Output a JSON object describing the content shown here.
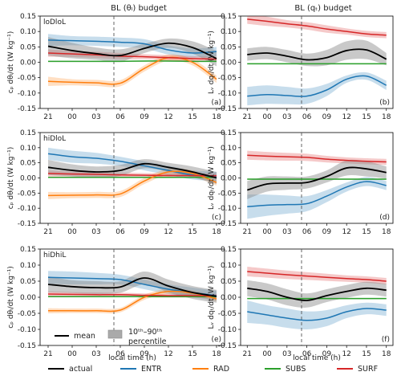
{
  "figure": {
    "column_titles": [
      "BL (θₗ) budget",
      "BL (qₜ) budget"
    ],
    "row_tags": [
      "loDloL",
      "hiDloL",
      "hiDhiL"
    ],
    "xlabel": "local time (h)",
    "ylabels_left": "cₚ dθₗ/dt (W kg⁻¹)",
    "ylabels_right": "Lᵥ dqₜ/dt (W kg⁻¹)",
    "panel_labels": [
      "(a)",
      "(b)",
      "(c)",
      "(d)",
      "(e)",
      "(f)"
    ],
    "legend_mean": "mean",
    "legend_pct": "10ᵗʰ–90ᵗʰ",
    "legend_pct2": "percentile",
    "bottom_legend": [
      "actual",
      "ENTR",
      "RAD",
      "SUBS",
      "SURF"
    ],
    "colors": {
      "actual": "#000000",
      "ENTR": "#1f77b4",
      "RAD": "#ff7f0e",
      "SUBS": "#2ca02c",
      "SURF": "#d62728"
    }
  },
  "chart_data": [
    {
      "panel": "(a)",
      "type": "line",
      "tag": "loDloL",
      "x": [
        21,
        24,
        27,
        30,
        33,
        36,
        39,
        42
      ],
      "xticks": [
        "21",
        "00",
        "03",
        "06",
        "09",
        "12",
        "15",
        "18"
      ],
      "ylim": [
        -0.15,
        0.15
      ],
      "vline_x": 29.2,
      "series": [
        {
          "name": "actual",
          "values": [
            0.052,
            0.038,
            0.028,
            0.022,
            0.045,
            0.062,
            0.048,
            0.012
          ],
          "band": [
            0.03,
            0.025,
            0.02,
            0.02,
            0.015,
            0.015,
            0.02,
            0.025
          ]
        },
        {
          "name": "ENTR",
          "values": [
            0.072,
            0.07,
            0.068,
            0.065,
            0.06,
            0.04,
            0.03,
            0.035
          ],
          "band": [
            0.02,
            0.015,
            0.015,
            0.015,
            0.015,
            0.015,
            0.015,
            0.015
          ]
        },
        {
          "name": "RAD",
          "values": [
            -0.062,
            -0.065,
            -0.067,
            -0.068,
            -0.02,
            0.015,
            0.0,
            -0.055
          ],
          "band": [
            0.015,
            0.01,
            0.01,
            0.01,
            0.01,
            0.01,
            0.01,
            0.012
          ]
        },
        {
          "name": "SUBS",
          "values": [
            0.003,
            0.003,
            0.003,
            0.003,
            0.004,
            0.004,
            0.003,
            0.003
          ],
          "band": [
            0.002,
            0.002,
            0.002,
            0.002,
            0.002,
            0.002,
            0.002,
            0.002
          ]
        },
        {
          "name": "SURF",
          "values": [
            0.03,
            0.027,
            0.024,
            0.02,
            0.018,
            0.015,
            0.012,
            0.01
          ],
          "band": [
            0.012,
            0.01,
            0.01,
            0.01,
            0.008,
            0.008,
            0.008,
            0.008
          ]
        }
      ]
    },
    {
      "panel": "(b)",
      "type": "line",
      "x": [
        21,
        24,
        27,
        30,
        33,
        36,
        39,
        42
      ],
      "xticks": [
        "21",
        "00",
        "03",
        "06",
        "09",
        "12",
        "15",
        "18"
      ],
      "ylim": [
        -0.15,
        0.15
      ],
      "vline_x": 29.2,
      "series": [
        {
          "name": "actual",
          "values": [
            0.025,
            0.03,
            0.02,
            0.008,
            0.015,
            0.038,
            0.04,
            0.01
          ],
          "band": [
            0.02,
            0.02,
            0.02,
            0.02,
            0.025,
            0.03,
            0.03,
            0.02
          ]
        },
        {
          "name": "ENTR",
          "values": [
            -0.11,
            -0.105,
            -0.108,
            -0.11,
            -0.09,
            -0.055,
            -0.045,
            -0.075
          ],
          "band": [
            0.03,
            0.03,
            0.028,
            0.025,
            0.02,
            0.012,
            0.012,
            0.015
          ]
        },
        {
          "name": "SUBS",
          "values": [
            -0.005,
            -0.005,
            -0.005,
            -0.005,
            -0.005,
            -0.005,
            -0.005,
            -0.005
          ],
          "band": [
            0.002,
            0.002,
            0.002,
            0.002,
            0.002,
            0.002,
            0.002,
            0.002
          ]
        },
        {
          "name": "SURF",
          "values": [
            0.14,
            0.133,
            0.125,
            0.118,
            0.108,
            0.1,
            0.092,
            0.088
          ],
          "band": [
            0.015,
            0.015,
            0.012,
            0.012,
            0.012,
            0.01,
            0.01,
            0.01
          ]
        }
      ]
    },
    {
      "panel": "(c)",
      "type": "line",
      "tag": "hiDloL",
      "x": [
        21,
        24,
        27,
        30,
        33,
        36,
        39,
        42
      ],
      "xticks": [
        "21",
        "00",
        "03",
        "06",
        "09",
        "12",
        "15",
        "18"
      ],
      "ylim": [
        -0.15,
        0.15
      ],
      "vline_x": 29.2,
      "series": [
        {
          "name": "actual",
          "values": [
            0.035,
            0.025,
            0.02,
            0.025,
            0.047,
            0.035,
            0.02,
            0.0
          ],
          "band": [
            0.025,
            0.02,
            0.018,
            0.018,
            0.015,
            0.015,
            0.018,
            0.02
          ]
        },
        {
          "name": "ENTR",
          "values": [
            0.08,
            0.07,
            0.065,
            0.055,
            0.04,
            0.025,
            0.01,
            0.005
          ],
          "band": [
            0.02,
            0.02,
            0.018,
            0.015,
            0.015,
            0.015,
            0.015,
            0.015
          ]
        },
        {
          "name": "RAD",
          "values": [
            -0.058,
            -0.057,
            -0.056,
            -0.053,
            -0.01,
            0.02,
            0.015,
            -0.015
          ],
          "band": [
            0.012,
            0.01,
            0.01,
            0.01,
            0.01,
            0.01,
            0.01,
            0.01
          ]
        },
        {
          "name": "SUBS",
          "values": [
            0.002,
            0.002,
            0.002,
            0.002,
            0.002,
            0.002,
            0.002,
            0.002
          ],
          "band": [
            0.002,
            0.002,
            0.002,
            0.002,
            0.002,
            0.002,
            0.002,
            0.002
          ]
        },
        {
          "name": "SURF",
          "values": [
            0.015,
            0.013,
            0.012,
            0.01,
            0.009,
            0.008,
            0.008,
            0.007
          ],
          "band": [
            0.01,
            0.008,
            0.008,
            0.008,
            0.007,
            0.007,
            0.007,
            0.007
          ]
        }
      ]
    },
    {
      "panel": "(d)",
      "type": "line",
      "x": [
        21,
        24,
        27,
        30,
        33,
        36,
        39,
        42
      ],
      "xticks": [
        "21",
        "00",
        "03",
        "06",
        "09",
        "12",
        "15",
        "18"
      ],
      "ylim": [
        -0.15,
        0.15
      ],
      "vline_x": 29.2,
      "series": [
        {
          "name": "actual",
          "values": [
            -0.04,
            -0.02,
            -0.017,
            -0.015,
            0.005,
            0.033,
            0.03,
            0.018
          ],
          "band": [
            0.03,
            0.025,
            0.022,
            0.02,
            0.02,
            0.025,
            0.025,
            0.02
          ]
        },
        {
          "name": "ENTR",
          "values": [
            -0.095,
            -0.09,
            -0.088,
            -0.085,
            -0.06,
            -0.03,
            -0.012,
            -0.025
          ],
          "band": [
            0.04,
            0.035,
            0.03,
            0.025,
            0.02,
            0.015,
            0.015,
            0.015
          ]
        },
        {
          "name": "SUBS",
          "values": [
            -0.004,
            -0.004,
            -0.004,
            -0.004,
            -0.004,
            -0.004,
            -0.004,
            -0.004
          ],
          "band": [
            0.002,
            0.002,
            0.002,
            0.002,
            0.002,
            0.002,
            0.002,
            0.002
          ]
        },
        {
          "name": "SURF",
          "values": [
            0.075,
            0.072,
            0.07,
            0.068,
            0.062,
            0.058,
            0.055,
            0.053
          ],
          "band": [
            0.015,
            0.014,
            0.013,
            0.012,
            0.011,
            0.01,
            0.01,
            0.01
          ]
        }
      ]
    },
    {
      "panel": "(e)",
      "type": "line",
      "tag": "hiDhiL",
      "x": [
        21,
        24,
        27,
        30,
        33,
        36,
        39,
        42
      ],
      "xticks": [
        "21",
        "00",
        "03",
        "06",
        "09",
        "12",
        "15",
        "18"
      ],
      "ylim": [
        -0.15,
        0.15
      ],
      "vline_x": 29.2,
      "series": [
        {
          "name": "actual",
          "values": [
            0.04,
            0.033,
            0.03,
            0.032,
            0.06,
            0.035,
            0.015,
            0.003
          ],
          "band": [
            0.025,
            0.02,
            0.02,
            0.018,
            0.02,
            0.02,
            0.02,
            0.02
          ]
        },
        {
          "name": "ENTR",
          "values": [
            0.062,
            0.06,
            0.058,
            0.055,
            0.04,
            0.025,
            0.015,
            0.005
          ],
          "band": [
            0.02,
            0.02,
            0.018,
            0.015,
            0.015,
            0.015,
            0.015,
            0.015
          ]
        },
        {
          "name": "RAD",
          "values": [
            -0.042,
            -0.042,
            -0.042,
            -0.04,
            0.0,
            0.018,
            0.013,
            -0.005
          ],
          "band": [
            0.008,
            0.007,
            0.007,
            0.007,
            0.008,
            0.008,
            0.008,
            0.008
          ]
        },
        {
          "name": "SUBS",
          "values": [
            0.002,
            0.002,
            0.002,
            0.002,
            0.002,
            0.002,
            0.002,
            0.002
          ],
          "band": [
            0.002,
            0.002,
            0.002,
            0.002,
            0.002,
            0.002,
            0.002,
            0.002
          ]
        },
        {
          "name": "SURF",
          "values": [
            0.01,
            0.009,
            0.008,
            0.008,
            0.006,
            0.005,
            0.005,
            0.004
          ],
          "band": [
            0.008,
            0.007,
            0.007,
            0.006,
            0.006,
            0.006,
            0.006,
            0.006
          ]
        }
      ]
    },
    {
      "panel": "(f)",
      "type": "line",
      "x": [
        21,
        24,
        27,
        30,
        33,
        36,
        39,
        42
      ],
      "xticks": [
        "21",
        "00",
        "03",
        "06",
        "09",
        "12",
        "15",
        "18"
      ],
      "ylim": [
        -0.15,
        0.15
      ],
      "vline_x": 29.2,
      "series": [
        {
          "name": "actual",
          "values": [
            0.028,
            0.018,
            0.0,
            -0.01,
            0.005,
            0.018,
            0.028,
            0.022
          ],
          "band": [
            0.025,
            0.025,
            0.025,
            0.022,
            0.02,
            0.02,
            0.02,
            0.02
          ]
        },
        {
          "name": "ENTR",
          "values": [
            -0.045,
            -0.055,
            -0.065,
            -0.072,
            -0.065,
            -0.045,
            -0.035,
            -0.04
          ],
          "band": [
            0.035,
            0.03,
            0.03,
            0.028,
            0.025,
            0.02,
            0.018,
            0.018
          ]
        },
        {
          "name": "SUBS",
          "values": [
            -0.004,
            -0.004,
            -0.004,
            -0.004,
            -0.004,
            -0.004,
            -0.004,
            -0.004
          ],
          "band": [
            0.002,
            0.002,
            0.002,
            0.002,
            0.002,
            0.002,
            0.002,
            0.002
          ]
        },
        {
          "name": "SURF",
          "values": [
            0.08,
            0.075,
            0.07,
            0.066,
            0.062,
            0.058,
            0.055,
            0.05
          ],
          "band": [
            0.015,
            0.014,
            0.013,
            0.012,
            0.011,
            0.01,
            0.01,
            0.01
          ]
        }
      ]
    }
  ]
}
